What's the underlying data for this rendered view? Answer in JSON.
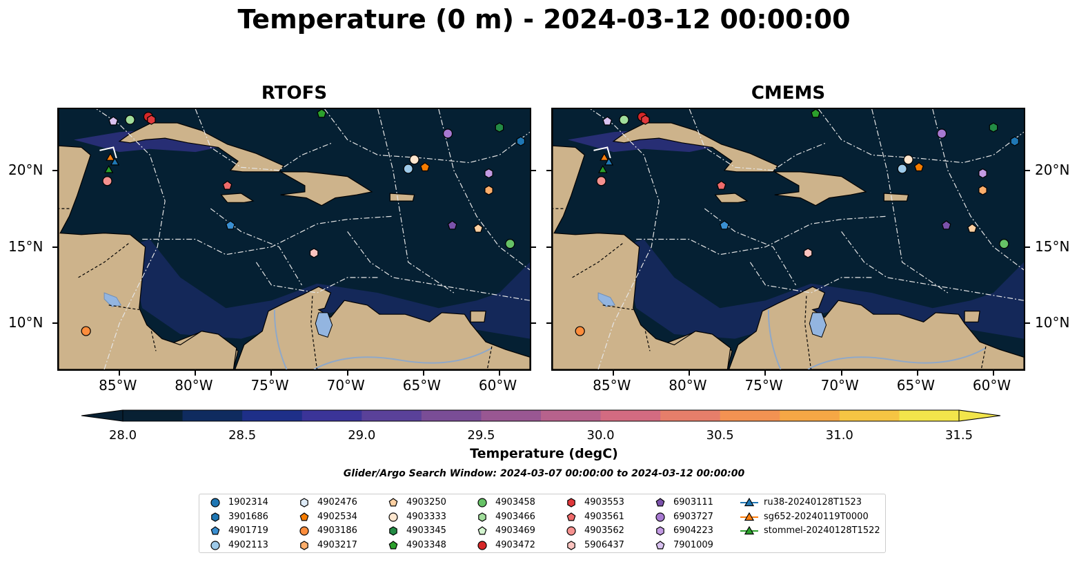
{
  "title": "Temperature (0 m) - 2024-03-12 00:00:00",
  "panels": [
    {
      "id": "rtofs",
      "title": "RTOFS"
    },
    {
      "id": "cmems",
      "title": "CMEMS"
    }
  ],
  "axes": {
    "lon_ticks": [
      "85°W",
      "80°W",
      "75°W",
      "70°W",
      "65°W",
      "60°W"
    ],
    "lat_ticks": [
      "20°N",
      "15°N",
      "10°N"
    ]
  },
  "colorbar": {
    "label": "Temperature (degC)",
    "min": 28.0,
    "max": 31.5,
    "ticks": [
      "28.0",
      "28.5",
      "29.0",
      "29.5",
      "30.0",
      "30.5",
      "31.0",
      "31.5"
    ],
    "colors": [
      "#082033",
      "#0f2b5f",
      "#1e2f88",
      "#3b3498",
      "#5a4199",
      "#7a4d96",
      "#995792",
      "#b7628c",
      "#d36b81",
      "#e67e6a",
      "#f39252",
      "#f6a745",
      "#f6c543",
      "#f2e54b"
    ],
    "extend": "both"
  },
  "search_window": "Glider/Argo Search Window: 2024-03-07 00:00:00 to 2024-03-12 00:00:00",
  "legend": [
    {
      "label": "1902314",
      "marker": "circle",
      "color": "#1f77b4"
    },
    {
      "label": "3901686",
      "marker": "hexagon",
      "color": "#1f77b4"
    },
    {
      "label": "4901719",
      "marker": "pentagon",
      "color": "#3a8fd1"
    },
    {
      "label": "4902113",
      "marker": "circle",
      "color": "#9ecae9"
    },
    {
      "label": "4902476",
      "marker": "hexagon",
      "color": "#deebf7"
    },
    {
      "label": "4902534",
      "marker": "pentagon",
      "color": "#f57c00"
    },
    {
      "label": "4903186",
      "marker": "circle",
      "color": "#fd8d3c"
    },
    {
      "label": "4903217",
      "marker": "hexagon",
      "color": "#fdae6b"
    },
    {
      "label": "4903250",
      "marker": "pentagon",
      "color": "#fdd0a2"
    },
    {
      "label": "4903333",
      "marker": "circle",
      "color": "#fee6ce"
    },
    {
      "label": "4903345",
      "marker": "hexagon",
      "color": "#238b45"
    },
    {
      "label": "4903348",
      "marker": "pentagon",
      "color": "#2ca02c"
    },
    {
      "label": "4903458",
      "marker": "circle",
      "color": "#66c266"
    },
    {
      "label": "4903466",
      "marker": "hexagon",
      "color": "#a1dd9b"
    },
    {
      "label": "4903469",
      "marker": "pentagon",
      "color": "#d4f5d0"
    },
    {
      "label": "4903472",
      "marker": "circle",
      "color": "#d62728"
    },
    {
      "label": "4903553",
      "marker": "hexagon",
      "color": "#e0393c"
    },
    {
      "label": "4903561",
      "marker": "pentagon",
      "color": "#f06b6b"
    },
    {
      "label": "4903562",
      "marker": "circle",
      "color": "#f5918f"
    },
    {
      "label": "5906437",
      "marker": "hexagon",
      "color": "#fcc4c0"
    },
    {
      "label": "6903111",
      "marker": "pentagon",
      "color": "#7b52ab"
    },
    {
      "label": "6903727",
      "marker": "circle",
      "color": "#a779d1"
    },
    {
      "label": "6904223",
      "marker": "hexagon",
      "color": "#c39be3"
    },
    {
      "label": "7901009",
      "marker": "pentagon",
      "color": "#d9c2f0"
    },
    {
      "label": "ru38-20240128T1523",
      "marker": "triangle-line",
      "color": "#1f77b4"
    },
    {
      "label": "sg652-20240119T0000",
      "marker": "triangle-line",
      "color": "#ff7f0e"
    },
    {
      "label": "stommel-20240128T1522",
      "marker": "triangle-line",
      "color": "#2ca02c"
    }
  ],
  "floats": [
    {
      "lon": -87.2,
      "lat": 9.5,
      "marker": "circle",
      "color": "#fd8d3c"
    },
    {
      "lon": -85.8,
      "lat": 19.3,
      "marker": "circle",
      "color": "#f5918f"
    },
    {
      "lon": -85.7,
      "lat": 20.0,
      "marker": "triangle",
      "color": "#2ca02c"
    },
    {
      "lon": -85.6,
      "lat": 20.8,
      "marker": "triangle",
      "color": "#ff7f0e"
    },
    {
      "lon": -85.3,
      "lat": 20.5,
      "marker": "triangle",
      "color": "#1f77b4"
    },
    {
      "lon": -85.4,
      "lat": 23.2,
      "marker": "pentagon",
      "color": "#d9c2f0"
    },
    {
      "lon": -84.3,
      "lat": 23.3,
      "marker": "circle",
      "color": "#a1dd9b"
    },
    {
      "lon": -83.1,
      "lat": 23.5,
      "marker": "circle",
      "color": "#d62728"
    },
    {
      "lon": -82.9,
      "lat": 23.3,
      "marker": "hexagon",
      "color": "#e0393c"
    },
    {
      "lon": -77.9,
      "lat": 19.0,
      "marker": "pentagon",
      "color": "#f06b6b"
    },
    {
      "lon": -77.7,
      "lat": 16.4,
      "marker": "pentagon",
      "color": "#3a8fd1"
    },
    {
      "lon": -72.2,
      "lat": 14.6,
      "marker": "hexagon",
      "color": "#fcc4c0"
    },
    {
      "lon": -71.7,
      "lat": 23.7,
      "marker": "pentagon",
      "color": "#2ca02c"
    },
    {
      "lon": -66.0,
      "lat": 20.1,
      "marker": "circle",
      "color": "#9ecae9"
    },
    {
      "lon": -65.6,
      "lat": 20.7,
      "marker": "circle",
      "color": "#fee6ce"
    },
    {
      "lon": -64.9,
      "lat": 20.2,
      "marker": "pentagon",
      "color": "#f57c00"
    },
    {
      "lon": -63.4,
      "lat": 22.4,
      "marker": "circle",
      "color": "#a779d1"
    },
    {
      "lon": -63.1,
      "lat": 16.4,
      "marker": "pentagon",
      "color": "#7b52ab"
    },
    {
      "lon": -61.4,
      "lat": 16.2,
      "marker": "pentagon",
      "color": "#fdd0a2"
    },
    {
      "lon": -60.7,
      "lat": 19.8,
      "marker": "hexagon",
      "color": "#c39be3"
    },
    {
      "lon": -60.7,
      "lat": 18.7,
      "marker": "hexagon",
      "color": "#fdae6b"
    },
    {
      "lon": -60.0,
      "lat": 22.8,
      "marker": "hexagon",
      "color": "#238b45"
    },
    {
      "lon": -59.3,
      "lat": 15.2,
      "marker": "circle",
      "color": "#66c266"
    },
    {
      "lon": -58.6,
      "lat": 21.9,
      "marker": "hexagon",
      "color": "#1f77b4"
    }
  ]
}
